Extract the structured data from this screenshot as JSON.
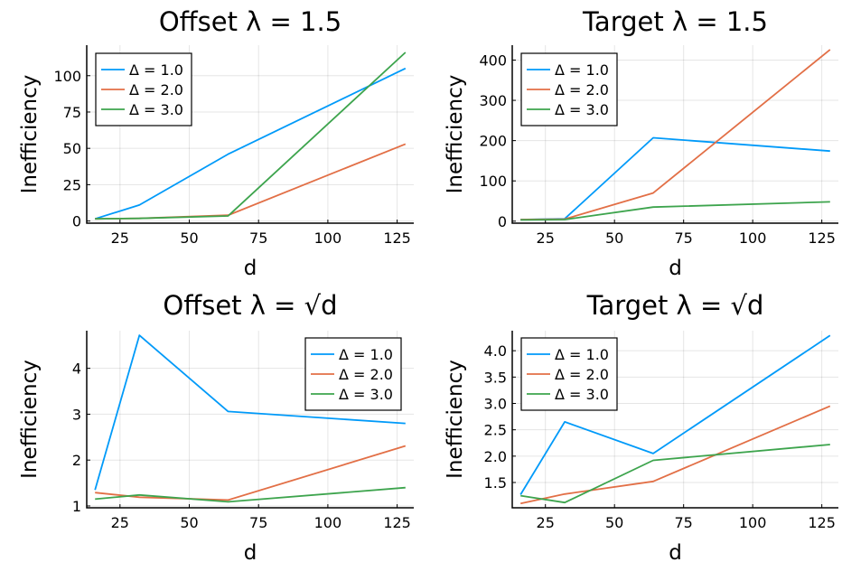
{
  "chart_data": [
    {
      "type": "line",
      "title": "Offset λ = 1.5",
      "xlabel": "d",
      "ylabel": "Inefficiency",
      "xlim": [
        13,
        131
      ],
      "ylim": [
        -1.5,
        121
      ],
      "xticks": [
        25,
        50,
        75,
        100,
        125
      ],
      "yticks": [
        0,
        25,
        50,
        75,
        100
      ],
      "grid": true,
      "legend": "top-left",
      "x": [
        16,
        32,
        64,
        128
      ],
      "series": [
        {
          "name": "Δ = 1.0",
          "color": "#009af9",
          "values": [
            1.5,
            11,
            46,
            105
          ]
        },
        {
          "name": "Δ = 2.0",
          "color": "#e26f46",
          "values": [
            1.5,
            1.8,
            4,
            53
          ]
        },
        {
          "name": "Δ = 3.0",
          "color": "#3da44d",
          "values": [
            1.5,
            1.8,
            3.5,
            116
          ]
        }
      ]
    },
    {
      "type": "line",
      "title": "Target λ = 1.5",
      "xlabel": "d",
      "ylabel": "Inefficiency",
      "xlim": [
        13,
        131
      ],
      "ylim": [
        -5,
        437
      ],
      "xticks": [
        25,
        50,
        75,
        100,
        125
      ],
      "yticks": [
        0,
        100,
        200,
        300,
        400
      ],
      "grid": true,
      "legend": "top-left",
      "x": [
        16,
        32,
        64,
        128
      ],
      "series": [
        {
          "name": "Δ = 1.0",
          "color": "#009af9",
          "values": [
            4,
            6,
            207,
            174
          ]
        },
        {
          "name": "Δ = 2.0",
          "color": "#e26f46",
          "values": [
            4,
            5,
            70,
            426
          ]
        },
        {
          "name": "Δ = 3.0",
          "color": "#3da44d",
          "values": [
            3,
            4,
            35,
            48
          ]
        }
      ]
    },
    {
      "type": "line",
      "title": "Offset λ = √d",
      "xlabel": "d",
      "ylabel": "Inefficiency",
      "xlim": [
        13,
        131
      ],
      "ylim": [
        0.96,
        4.82
      ],
      "xticks": [
        25,
        50,
        75,
        100,
        125
      ],
      "yticks": [
        1,
        2,
        3,
        4
      ],
      "grid": true,
      "legend": "top-right",
      "x": [
        16,
        32,
        64,
        128
      ],
      "series": [
        {
          "name": "Δ = 1.0",
          "color": "#009af9",
          "values": [
            1.35,
            4.72,
            3.06,
            2.8
          ]
        },
        {
          "name": "Δ = 2.0",
          "color": "#e26f46",
          "values": [
            1.29,
            1.19,
            1.13,
            2.31
          ]
        },
        {
          "name": "Δ = 3.0",
          "color": "#3da44d",
          "values": [
            1.15,
            1.24,
            1.09,
            1.4
          ]
        }
      ]
    },
    {
      "type": "line",
      "title": "Target λ = √d",
      "xlabel": "d",
      "ylabel": "Inefficiency",
      "xlim": [
        13,
        131
      ],
      "ylim": [
        1.02,
        4.38
      ],
      "xticks": [
        25,
        50,
        75,
        100,
        125
      ],
      "yticks": [
        1.5,
        2.0,
        2.5,
        3.0,
        3.5,
        4.0
      ],
      "ytick_labels": [
        "1.5",
        "2.0",
        "2.5",
        "3.0",
        "3.5",
        "4.0"
      ],
      "grid": true,
      "legend": "top-left",
      "x": [
        16,
        32,
        64,
        128
      ],
      "series": [
        {
          "name": "Δ = 1.0",
          "color": "#009af9",
          "values": [
            1.27,
            2.65,
            2.05,
            4.29
          ]
        },
        {
          "name": "Δ = 2.0",
          "color": "#e26f46",
          "values": [
            1.1,
            1.28,
            1.52,
            2.95
          ]
        },
        {
          "name": "Δ = 3.0",
          "color": "#3da44d",
          "values": [
            1.25,
            1.12,
            1.92,
            2.22
          ]
        }
      ]
    }
  ]
}
